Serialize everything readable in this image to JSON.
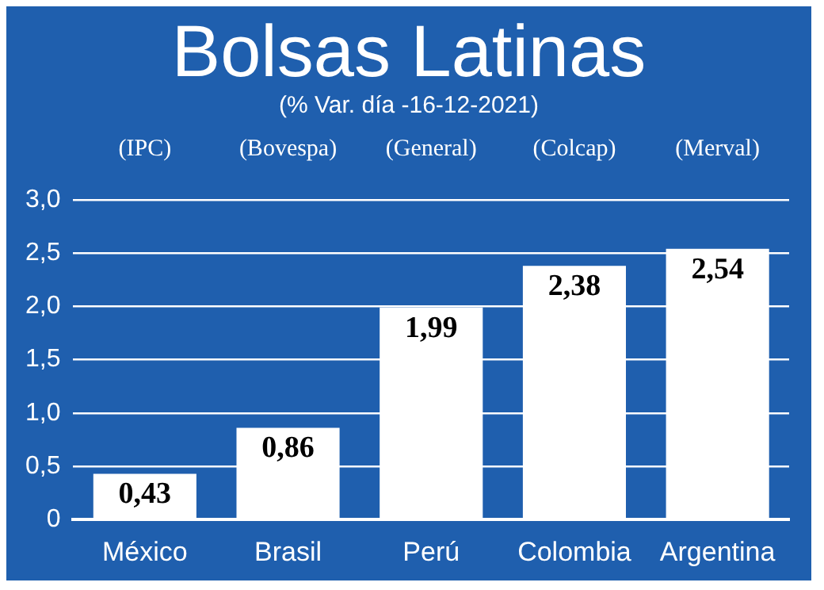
{
  "chart_data": {
    "type": "bar",
    "title": "Bolsas Latinas",
    "subtitle": "(% Var. día -16-12-2021)",
    "categories": [
      "México",
      "Brasil",
      "Perú",
      "Colombia",
      "Argentina"
    ],
    "values": [
      0.43,
      0.86,
      1.99,
      2.38,
      2.54
    ],
    "value_labels": [
      "0,43",
      "0,86",
      "1,99",
      "2,38",
      "2,54"
    ],
    "color": "#ffffff",
    "annotations": [
      "(IPC)",
      "(Bovespa)",
      "(General)",
      "(Colcap)",
      "(Merval)"
    ],
    "ylim": [
      0,
      3
    ],
    "yticks": [
      {
        "value": 0,
        "label": "0"
      },
      {
        "value": 0.5,
        "label": "0,5"
      },
      {
        "value": 1,
        "label": "1,0"
      },
      {
        "value": 1.5,
        "label": "1,5"
      },
      {
        "value": 2,
        "label": "2,0"
      },
      {
        "value": 2.5,
        "label": "2,5"
      },
      {
        "value": 3,
        "label": "3,0"
      }
    ],
    "grid": "y",
    "legend": false
  }
}
